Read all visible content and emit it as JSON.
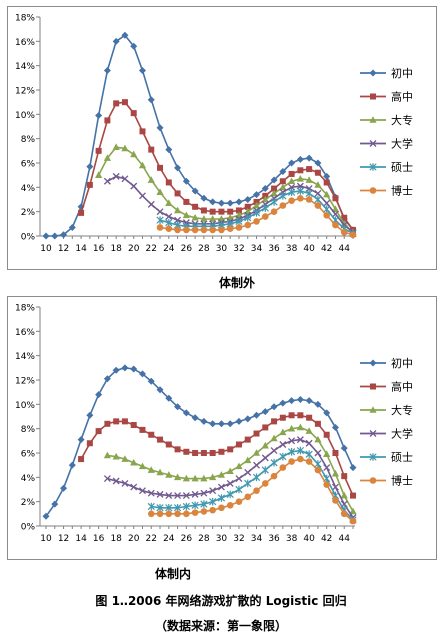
{
  "figure": {
    "caption": "图 1‥2006 年网络游戏扩散的 Logistic 回归",
    "source": "（数据来源：第一象限）"
  },
  "chart_data": [
    {
      "type": "line",
      "title": "体制外",
      "xlabel": "",
      "ylabel": "",
      "xlim": [
        10,
        45
      ],
      "ylim": [
        0,
        18
      ],
      "x_ticks": [
        10,
        12,
        14,
        16,
        18,
        20,
        22,
        24,
        26,
        28,
        30,
        32,
        34,
        36,
        38,
        40,
        42,
        44
      ],
      "y_ticks": [
        "0%",
        "2%",
        "4%",
        "6%",
        "8%",
        "10%",
        "12%",
        "14%",
        "16%",
        "18%"
      ],
      "grid": false,
      "legend": "right",
      "series": [
        {
          "name": "初中",
          "color": "#4572a7",
          "marker": "diamond",
          "x": [
            10,
            11,
            12,
            13,
            14,
            15,
            16,
            17,
            18,
            19,
            20,
            21,
            22,
            23,
            24,
            25,
            26,
            27,
            28,
            29,
            30,
            31,
            32,
            33,
            34,
            35,
            36,
            37,
            38,
            39,
            40,
            41,
            42,
            43,
            44,
            45
          ],
          "y": [
            0,
            0,
            0.1,
            0.7,
            2.4,
            5.7,
            9.9,
            13.6,
            16,
            16.5,
            15.6,
            13.6,
            11.2,
            8.9,
            7.1,
            5.6,
            4.5,
            3.7,
            3.1,
            2.8,
            2.7,
            2.7,
            2.8,
            3.0,
            3.4,
            3.9,
            4.6,
            5.3,
            6.0,
            6.3,
            6.4,
            6.0,
            4.9,
            3.2,
            1.4,
            0.5
          ]
        },
        {
          "name": "高中",
          "color": "#aa4643",
          "marker": "square",
          "x": [
            14,
            15,
            16,
            17,
            18,
            19,
            20,
            21,
            22,
            23,
            24,
            25,
            26,
            27,
            28,
            29,
            30,
            31,
            32,
            33,
            34,
            35,
            36,
            37,
            38,
            39,
            40,
            41,
            42,
            43,
            44,
            45
          ],
          "y": [
            1.9,
            4.2,
            7.0,
            9.5,
            10.9,
            11.0,
            10.1,
            8.6,
            7.1,
            5.6,
            4.4,
            3.5,
            2.8,
            2.4,
            2.1,
            2.0,
            2.0,
            2.0,
            2.1,
            2.4,
            2.8,
            3.3,
            3.9,
            4.5,
            5.1,
            5.4,
            5.5,
            5.2,
            4.4,
            3.1,
            1.5,
            0.5
          ]
        },
        {
          "name": "大专",
          "color": "#89a54e",
          "marker": "triangle",
          "x": [
            16,
            17,
            18,
            19,
            20,
            21,
            22,
            23,
            24,
            25,
            26,
            27,
            28,
            29,
            30,
            31,
            32,
            33,
            34,
            35,
            36,
            37,
            38,
            39,
            40,
            41,
            42,
            43,
            44,
            45
          ],
          "y": [
            5.0,
            6.4,
            7.3,
            7.2,
            6.7,
            5.8,
            4.6,
            3.6,
            2.7,
            2.1,
            1.7,
            1.5,
            1.4,
            1.4,
            1.4,
            1.5,
            1.7,
            2.0,
            2.5,
            3.0,
            3.5,
            4.0,
            4.5,
            4.7,
            4.6,
            4.2,
            3.4,
            2.2,
            1.0,
            0.3
          ]
        },
        {
          "name": "大学",
          "color": "#71588f",
          "marker": "x",
          "x": [
            17,
            18,
            19,
            20,
            21,
            22,
            23,
            24,
            25,
            26,
            27,
            28,
            29,
            30,
            31,
            32,
            33,
            34,
            35,
            36,
            37,
            38,
            39,
            40,
            41,
            42,
            43,
            44,
            45
          ],
          "y": [
            4.5,
            4.9,
            4.7,
            4.1,
            3.3,
            2.6,
            2.0,
            1.6,
            1.3,
            1.1,
            1.0,
            1.0,
            1.0,
            1.1,
            1.2,
            1.4,
            1.7,
            2.1,
            2.6,
            3.1,
            3.6,
            4.0,
            4.1,
            3.9,
            3.5,
            2.7,
            1.8,
            0.9,
            0.3
          ]
        },
        {
          "name": "硕士",
          "color": "#4198af",
          "marker": "star",
          "x": [
            23,
            24,
            25,
            26,
            27,
            28,
            29,
            30,
            31,
            32,
            33,
            34,
            35,
            36,
            37,
            38,
            39,
            40,
            41,
            42,
            43,
            44,
            45
          ],
          "y": [
            1.3,
            1.1,
            0.9,
            0.8,
            0.8,
            0.8,
            0.8,
            0.9,
            1.0,
            1.2,
            1.5,
            1.9,
            2.3,
            2.8,
            3.3,
            3.6,
            3.7,
            3.5,
            3.0,
            2.2,
            1.3,
            0.6,
            0.2
          ]
        },
        {
          "name": "博士",
          "color": "#db843d",
          "marker": "circle",
          "x": [
            23,
            24,
            25,
            26,
            27,
            28,
            29,
            30,
            31,
            32,
            33,
            34,
            35,
            36,
            37,
            38,
            39,
            40,
            41,
            42,
            43,
            44,
            45
          ],
          "y": [
            0.7,
            0.6,
            0.5,
            0.5,
            0.5,
            0.5,
            0.5,
            0.5,
            0.6,
            0.7,
            0.9,
            1.2,
            1.6,
            2.0,
            2.5,
            2.9,
            3.1,
            3.0,
            2.5,
            1.7,
            0.9,
            0.3,
            0.1
          ]
        }
      ]
    },
    {
      "type": "line",
      "title": "体制内",
      "xlabel": "",
      "ylabel": "",
      "xlim": [
        10,
        45
      ],
      "ylim": [
        0,
        18
      ],
      "x_ticks": [
        10,
        12,
        14,
        16,
        18,
        20,
        22,
        24,
        26,
        28,
        30,
        32,
        34,
        36,
        38,
        40,
        42,
        44
      ],
      "y_ticks": [
        "0%",
        "2%",
        "4%",
        "6%",
        "8%",
        "10%",
        "12%",
        "14%",
        "16%",
        "18%"
      ],
      "grid": false,
      "legend": "right",
      "series": [
        {
          "name": "初中",
          "color": "#4572a7",
          "marker": "diamond",
          "x": [
            10,
            11,
            12,
            13,
            14,
            15,
            16,
            17,
            18,
            19,
            20,
            21,
            22,
            23,
            24,
            25,
            26,
            27,
            28,
            29,
            30,
            31,
            32,
            33,
            34,
            35,
            36,
            37,
            38,
            39,
            40,
            41,
            42,
            43,
            44,
            45
          ],
          "y": [
            0.8,
            1.8,
            3.1,
            5.0,
            7.1,
            9.1,
            10.8,
            12.1,
            12.8,
            13.0,
            12.9,
            12.5,
            11.9,
            11.2,
            10.5,
            9.8,
            9.3,
            8.9,
            8.6,
            8.4,
            8.4,
            8.4,
            8.6,
            8.8,
            9.1,
            9.4,
            9.8,
            10.1,
            10.3,
            10.4,
            10.3,
            10.0,
            9.3,
            8.1,
            6.4,
            4.8
          ]
        },
        {
          "name": "高中",
          "color": "#aa4643",
          "marker": "square",
          "x": [
            14,
            15,
            16,
            17,
            18,
            19,
            20,
            21,
            22,
            23,
            24,
            25,
            26,
            27,
            28,
            29,
            30,
            31,
            32,
            33,
            34,
            35,
            36,
            37,
            38,
            39,
            40,
            41,
            42,
            43,
            44,
            45
          ],
          "y": [
            5.5,
            6.8,
            7.8,
            8.4,
            8.6,
            8.6,
            8.3,
            7.9,
            7.5,
            7.1,
            6.7,
            6.3,
            6.1,
            6.0,
            6.0,
            6.0,
            6.1,
            6.3,
            6.7,
            7.1,
            7.6,
            8.1,
            8.6,
            8.9,
            9.1,
            9.1,
            8.9,
            8.4,
            7.5,
            6.0,
            4.1,
            2.5
          ]
        },
        {
          "name": "大专",
          "color": "#89a54e",
          "marker": "triangle",
          "x": [
            17,
            18,
            19,
            20,
            21,
            22,
            23,
            24,
            25,
            26,
            27,
            28,
            29,
            30,
            31,
            32,
            33,
            34,
            35,
            36,
            37,
            38,
            39,
            40,
            41,
            42,
            43,
            44,
            45
          ],
          "y": [
            5.8,
            5.7,
            5.5,
            5.2,
            4.9,
            4.6,
            4.4,
            4.2,
            4.0,
            3.9,
            3.9,
            3.9,
            4.0,
            4.2,
            4.5,
            4.9,
            5.4,
            6.0,
            6.6,
            7.2,
            7.7,
            8.0,
            8.1,
            7.8,
            7.1,
            5.9,
            4.3,
            2.5,
            1.2
          ]
        },
        {
          "name": "大学",
          "color": "#71588f",
          "marker": "x",
          "x": [
            17,
            18,
            19,
            20,
            21,
            22,
            23,
            24,
            25,
            26,
            27,
            28,
            29,
            30,
            31,
            32,
            33,
            34,
            35,
            36,
            37,
            38,
            39,
            40,
            41,
            42,
            43,
            44,
            45
          ],
          "y": [
            3.9,
            3.7,
            3.5,
            3.2,
            2.9,
            2.7,
            2.6,
            2.5,
            2.5,
            2.5,
            2.6,
            2.7,
            2.9,
            3.2,
            3.5,
            3.9,
            4.4,
            5.0,
            5.6,
            6.2,
            6.7,
            7.0,
            7.1,
            6.8,
            6.0,
            4.8,
            3.2,
            1.8,
            0.7
          ]
        },
        {
          "name": "硕士",
          "color": "#4198af",
          "marker": "star",
          "x": [
            22,
            23,
            24,
            25,
            26,
            27,
            28,
            29,
            30,
            31,
            32,
            33,
            34,
            35,
            36,
            37,
            38,
            39,
            40,
            41,
            42,
            43,
            44,
            45
          ],
          "y": [
            1.6,
            1.5,
            1.5,
            1.5,
            1.6,
            1.7,
            1.8,
            2.0,
            2.3,
            2.6,
            3.0,
            3.5,
            4.0,
            4.6,
            5.2,
            5.7,
            6.1,
            6.2,
            5.9,
            5.1,
            3.9,
            2.5,
            1.3,
            0.5
          ]
        },
        {
          "name": "博士",
          "color": "#db843d",
          "marker": "circle",
          "x": [
            22,
            23,
            24,
            25,
            26,
            27,
            28,
            29,
            30,
            31,
            32,
            33,
            34,
            35,
            36,
            37,
            38,
            39,
            40,
            41,
            42,
            43,
            44,
            45
          ],
          "y": [
            1.0,
            1.0,
            1.0,
            1.0,
            1.0,
            1.1,
            1.2,
            1.3,
            1.5,
            1.7,
            2.0,
            2.4,
            2.9,
            3.5,
            4.1,
            4.8,
            5.3,
            5.5,
            5.3,
            4.6,
            3.4,
            2.1,
            1.0,
            0.4
          ]
        }
      ]
    }
  ]
}
